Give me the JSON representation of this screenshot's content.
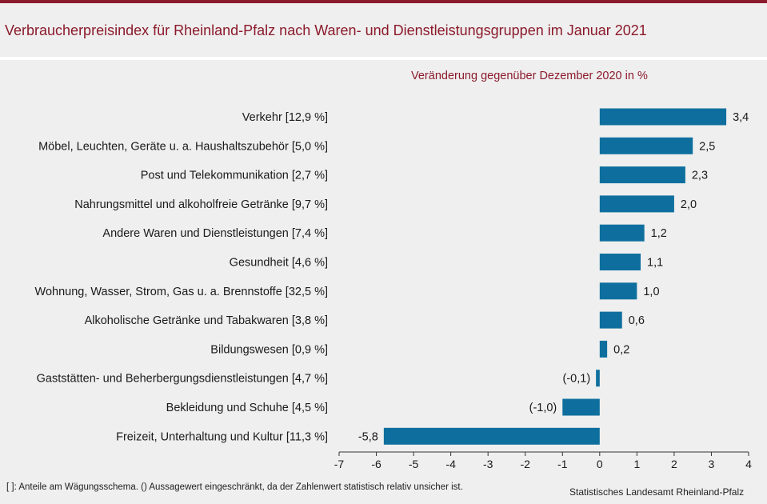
{
  "header": {
    "title": "Verbraucherpreisindex für Rheinland-Pfalz nach Waren- und Dienstleistungsgruppen im Januar 2021"
  },
  "colors": {
    "accent": "#8b1a2b",
    "bar": "#0e6f9e",
    "background": "#efefef"
  },
  "chart_data": {
    "type": "bar",
    "orientation": "horizontal",
    "subtitle": "Veränderung gegenüber Dezember 2020 in %",
    "categories": [
      "Verkehr [12,9 %]",
      "Möbel, Leuchten, Geräte u. a. Haushaltszubehör [5,0 %]",
      "Post und Telekommunikation [2,7 %]",
      "Nahrungsmittel und alkoholfreie Getränke [9,7 %]",
      "Andere Waren und Dienstleistungen [7,4 %]",
      "Gesundheit [4,6 %]",
      "Wohnung, Wasser, Strom, Gas u. a. Brennstoffe [32,5 %]",
      "Alkoholische Getränke und Tabakwaren [3,8 %]",
      "Bildungswesen [0,9 %]",
      "Gaststätten- und Beherbergungsdienstleistungen [4,7 %]",
      "Bekleidung und Schuhe [4,5 %]",
      "Freizeit, Unterhaltung und Kultur [11,3 %]"
    ],
    "values": [
      3.4,
      2.5,
      2.3,
      2.0,
      1.2,
      1.1,
      1.0,
      0.6,
      0.2,
      -0.1,
      -1.0,
      -5.8
    ],
    "data_labels": [
      "3,4",
      "2,5",
      "2,3",
      "2,0",
      "1,2",
      "1,1",
      "1,0",
      "0,6",
      "0,2",
      "(-0,1)",
      "(-1,0)",
      "-5,8"
    ],
    "xlim": [
      -7,
      4
    ],
    "xticks": [
      -7,
      -6,
      -5,
      -4,
      -3,
      -2,
      -1,
      0,
      1,
      2,
      3,
      4
    ],
    "xtick_labels": [
      "-7",
      "-6",
      "-5",
      "-4",
      "-3",
      "-2",
      "-1",
      "0",
      "1",
      "2",
      "3",
      "4"
    ],
    "grid": false,
    "bar_color": "#0e6f9e"
  },
  "footer": {
    "note": "[ ]: Anteile am Wägungsschema. () Aussagewert eingeschränkt, da der Zahlenwert statistisch relativ unsicher ist.",
    "source": "Statistisches Landesamt Rheinland-Pfalz"
  }
}
